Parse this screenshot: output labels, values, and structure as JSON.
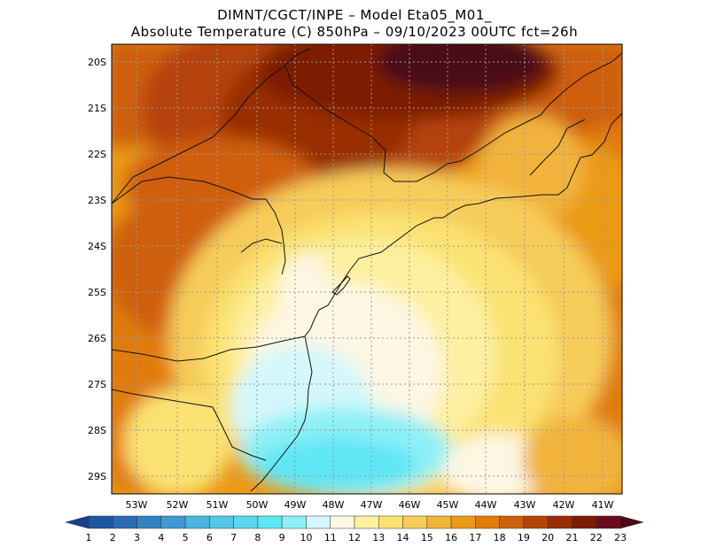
{
  "header": {
    "line1": "DIMNT/CGCT/INPE –  Model Eta05_M01_",
    "line2": "Absolute Temperature (C) 850hPa –  09/10/2023 00UTC fct=26h"
  },
  "map": {
    "lat_labels": [
      "20S",
      "21S",
      "22S",
      "23S",
      "24S",
      "25S",
      "26S",
      "27S",
      "28S",
      "29S"
    ],
    "lon_labels": [
      "53W",
      "52W",
      "51W",
      "50W",
      "49W",
      "48W",
      "47W",
      "46W",
      "45W",
      "44W",
      "43W",
      "42W",
      "41W"
    ]
  },
  "colorbar": {
    "labels": [
      "1",
      "2",
      "3",
      "4",
      "5",
      "6",
      "7",
      "8",
      "9",
      "10",
      "11",
      "12",
      "13",
      "14",
      "15",
      "16",
      "17",
      "18",
      "19",
      "20",
      "21",
      "22",
      "23"
    ],
    "colors": [
      "#1b3f8f",
      "#1f55a3",
      "#2a6cb5",
      "#3383c2",
      "#3f9ad0",
      "#4ab3de",
      "#55c8e8",
      "#5ad6ef",
      "#5ee6f5",
      "#8ef0f7",
      "#d4f7fb",
      "#fdf7e3",
      "#fdf0a0",
      "#fbe272",
      "#f6cc5a",
      "#f2b33c",
      "#eb9a18",
      "#e07c0a",
      "#cf5f0a",
      "#b54307",
      "#992d06",
      "#7d1a05",
      "#6b0d1f",
      "#4a0a15"
    ]
  }
}
